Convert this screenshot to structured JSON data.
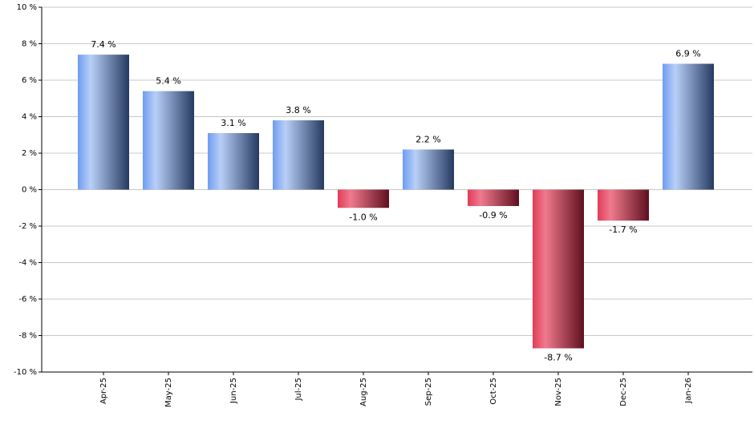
{
  "chart_data": {
    "type": "bar",
    "categories": [
      "Apr-25",
      "May-25",
      "Jun-25",
      "Jul-25",
      "Aug-25",
      "Sep-25",
      "Oct-25",
      "Nov-25",
      "Dec-25",
      "Jan-26"
    ],
    "values": [
      7.4,
      5.4,
      3.1,
      3.8,
      -1.0,
      2.2,
      -0.9,
      -8.7,
      -1.7,
      6.9
    ],
    "value_labels": [
      "7.4 %",
      "5.4 %",
      "3.1 %",
      "3.8 %",
      "-1.0 %",
      "2.2 %",
      "-0.9 %",
      "-8.7 %",
      "-1.7 %",
      "6.9 %"
    ],
    "ylim": [
      -10,
      10
    ],
    "yticks": [
      {
        "value": -10,
        "label": "-10 %"
      },
      {
        "value": -8,
        "label": "-8 %"
      },
      {
        "value": -6,
        "label": "-6 %"
      },
      {
        "value": -4,
        "label": "-4 %"
      },
      {
        "value": -2,
        "label": "-2 %"
      },
      {
        "value": 0,
        "label": "0 %"
      },
      {
        "value": 2,
        "label": "2 %"
      },
      {
        "value": 4,
        "label": "4 %"
      },
      {
        "value": 6,
        "label": "6 %"
      },
      {
        "value": 8,
        "label": "8 %"
      },
      {
        "value": 10,
        "label": "10 %"
      }
    ],
    "grid": true,
    "colors": {
      "positive": [
        "#6f9cf0",
        "#b8cff8",
        "#263a60"
      ],
      "negative": [
        "#e03c58",
        "#f07a8e",
        "#5e0f1e"
      ]
    }
  }
}
